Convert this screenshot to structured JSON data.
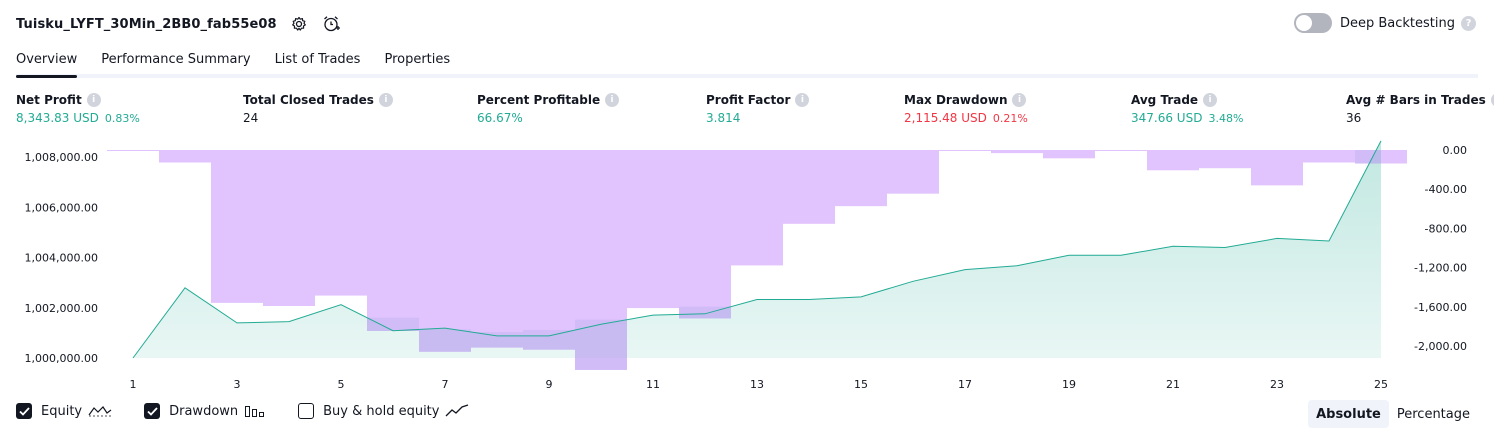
{
  "header": {
    "title": "Tuisku_LYFT_30Min_2BB0_fab55e08",
    "deep_label": "Deep Backtesting",
    "deep_enabled": false
  },
  "tabs": [
    {
      "label": "Overview",
      "active": true
    },
    {
      "label": "Performance Summary",
      "active": false
    },
    {
      "label": "List of Trades",
      "active": false
    },
    {
      "label": "Properties",
      "active": false
    }
  ],
  "metrics": {
    "net_profit": {
      "label": "Net Profit",
      "value": "8,343.83 USD",
      "pct": "0.83%"
    },
    "total_closed": {
      "label": "Total Closed Trades",
      "value": "24"
    },
    "percent_profitable": {
      "label": "Percent Profitable",
      "value": "66.67%"
    },
    "profit_factor": {
      "label": "Profit Factor",
      "value": "3.814"
    },
    "max_drawdown": {
      "label": "Max Drawdown",
      "value": "2,115.48 USD",
      "pct": "0.21%"
    },
    "avg_trade": {
      "label": "Avg Trade",
      "value": "347.66 USD",
      "pct": "3.48%"
    },
    "avg_bars": {
      "label": "Avg # Bars in Trades",
      "value": "36"
    }
  },
  "chart_data": {
    "type": "area",
    "x_ticks": [
      "1",
      "3",
      "5",
      "7",
      "9",
      "11",
      "13",
      "15",
      "17",
      "19",
      "21",
      "23",
      "25"
    ],
    "left_ticks": [
      "1,008,000.00",
      "1,006,000.00",
      "1,004,000.00",
      "1,002,000.00",
      "1,000,000.00"
    ],
    "right_ticks": [
      "0.00",
      "-400.00",
      "-800.00",
      "-1,200.00",
      "-1,600.00",
      "-2,000.00"
    ],
    "left_ylim": [
      1000000,
      1008000
    ],
    "right_ylim": [
      -2000,
      0
    ],
    "equity": [
      1000000,
      1002700,
      1001350,
      1001400,
      1002050,
      1001050,
      1001150,
      1000850,
      1000850,
      1001300,
      1001650,
      1001700,
      1002250,
      1002250,
      1002350,
      1002950,
      1003400,
      1003550,
      1003950,
      1003950,
      1004300,
      1004250,
      1004600,
      1004500,
      1008350
    ],
    "drawdown": [
      -10,
      -120,
      -1470,
      -1500,
      -1400,
      -1740,
      -1940,
      -1900,
      -1920,
      -2115,
      -1520,
      -1620,
      -1110,
      -710,
      -540,
      -420,
      0,
      -30,
      -80,
      -10,
      -195,
      -175,
      -340,
      -120,
      -130
    ],
    "colors": {
      "equity_line": "#22ab94",
      "equity_fill": "#22ab94",
      "drawdown_bar": "#e1c4fd",
      "overlap": "#c4b6f3"
    }
  },
  "legend": [
    {
      "label": "Equity",
      "checked": true,
      "icon": "equity-line-icon"
    },
    {
      "label": "Drawdown",
      "checked": true,
      "icon": "drawdown-bars-icon"
    },
    {
      "label": "Buy & hold equity",
      "checked": false,
      "icon": "buyhold-line-icon"
    }
  ],
  "mode": {
    "absolute_label": "Absolute",
    "percentage_label": "Percentage",
    "selected": "Absolute"
  }
}
